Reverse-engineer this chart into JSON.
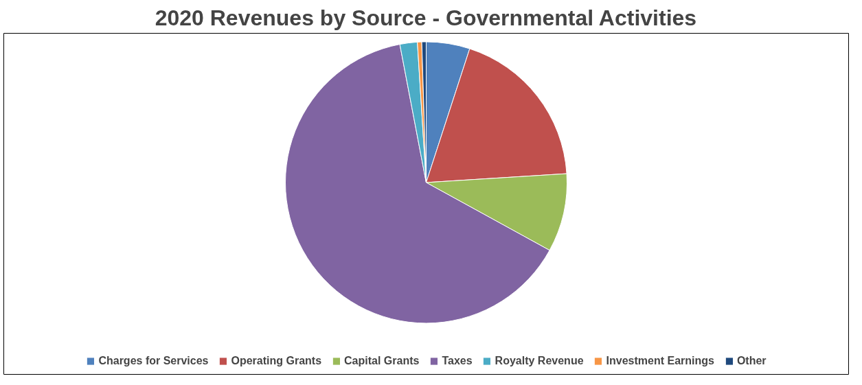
{
  "chart_data": {
    "type": "pie",
    "title": "2020 Revenues by Source - Governmental Activities",
    "categories": [
      "Charges for Services",
      "Operating Grants",
      "Capital Grants",
      "Taxes",
      "Royalty Revenue",
      "Investment Earnings",
      "Other"
    ],
    "values": [
      5,
      19,
      9,
      64,
      2,
      0.5,
      0.5
    ],
    "colors": [
      "#4f81bd",
      "#c0504d",
      "#9bbb59",
      "#8064a2",
      "#4bacc6",
      "#f79646",
      "#1f497d"
    ],
    "legend": "bottom"
  }
}
